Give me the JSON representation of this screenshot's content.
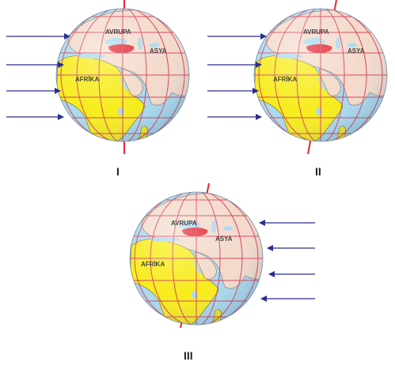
{
  "colors": {
    "ocean": "#a9d9ef",
    "africa": "#f7ec1c",
    "eurasia": "#f3dacb",
    "grid": "#d4415b",
    "axis": "#e3262f",
    "arrow": "#2b2f8f",
    "turkey": "#e3262f"
  },
  "globes": [
    {
      "id": "I",
      "label": "I",
      "light_from": "left",
      "continents": {
        "europe": "AVRUPA",
        "asia": "ASYA",
        "africa": "AFRİKA"
      }
    },
    {
      "id": "II",
      "label": "II",
      "light_from": "left",
      "continents": {
        "europe": "AVRUPA",
        "asia": "ASYA",
        "africa": "AFRİKA"
      }
    },
    {
      "id": "III",
      "label": "III",
      "light_from": "right",
      "continents": {
        "europe": "AVRUPA",
        "asia": "ASYA",
        "africa": "AFRİKA"
      }
    }
  ]
}
